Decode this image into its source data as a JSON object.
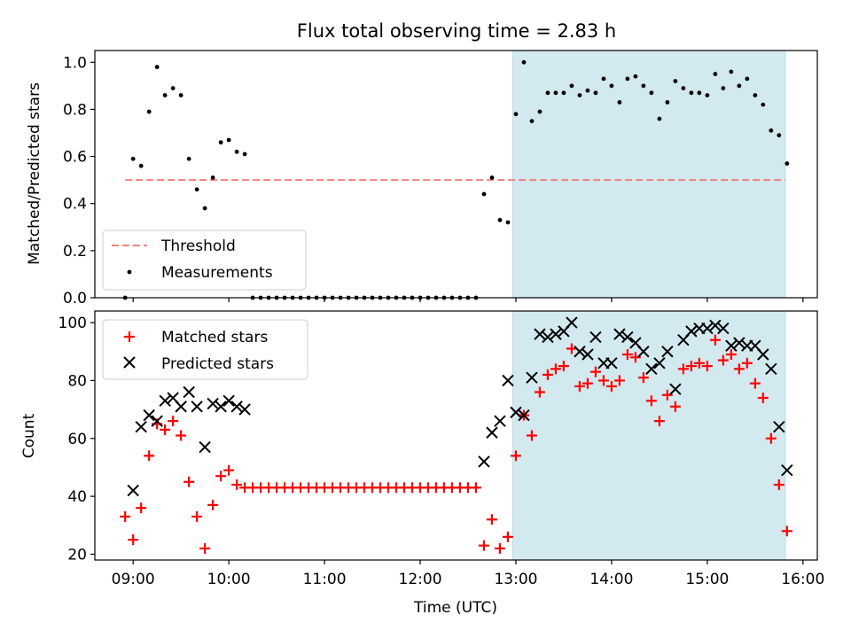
{
  "chart_data": [
    {
      "type": "scatter",
      "title": "Flux total observing time = 2.83 h",
      "ylabel": "Matched/Predicted stars",
      "xlim": [
        "08:36",
        "16:09"
      ],
      "ylim": [
        0,
        1.05
      ],
      "y_ticks": [
        "0.0",
        "0.2",
        "0.4",
        "0.6",
        "0.8",
        "1.0"
      ],
      "grid": false,
      "legend_position": "lower-left",
      "shaded_interval": {
        "start": "12:58",
        "end": "15:49",
        "color": "#d3e9f0"
      },
      "threshold": {
        "name": "Threshold",
        "value": 0.5,
        "x_start": "08:55",
        "x_end": "15:49",
        "color": "#f08080",
        "style": "dashed"
      },
      "measurements": {
        "name": "Measurements",
        "color": "#000000",
        "points": [
          [
            "08:55",
            0.0
          ],
          [
            "09:00",
            0.59
          ],
          [
            "09:05",
            0.56
          ],
          [
            "09:10",
            0.79
          ],
          [
            "09:15",
            0.98
          ],
          [
            "09:20",
            0.86
          ],
          [
            "09:25",
            0.89
          ],
          [
            "09:30",
            0.86
          ],
          [
            "09:35",
            0.59
          ],
          [
            "09:40",
            0.46
          ],
          [
            "09:45",
            0.38
          ],
          [
            "09:50",
            0.51
          ],
          [
            "09:55",
            0.66
          ],
          [
            "10:00",
            0.67
          ],
          [
            "10:05",
            0.62
          ],
          [
            "10:10",
            0.61
          ],
          [
            "10:15",
            0.0
          ],
          [
            "10:20",
            0.0
          ],
          [
            "10:25",
            0.0
          ],
          [
            "10:30",
            0.0
          ],
          [
            "10:35",
            0.0
          ],
          [
            "10:40",
            0.0
          ],
          [
            "10:45",
            0.0
          ],
          [
            "10:50",
            0.0
          ],
          [
            "10:55",
            0.0
          ],
          [
            "11:00",
            0.0
          ],
          [
            "11:05",
            0.0
          ],
          [
            "11:10",
            0.0
          ],
          [
            "11:15",
            0.0
          ],
          [
            "11:20",
            0.0
          ],
          [
            "11:25",
            0.0
          ],
          [
            "11:30",
            0.0
          ],
          [
            "11:35",
            0.0
          ],
          [
            "11:40",
            0.0
          ],
          [
            "11:45",
            0.0
          ],
          [
            "11:50",
            0.0
          ],
          [
            "11:55",
            0.0
          ],
          [
            "12:00",
            0.0
          ],
          [
            "12:05",
            0.0
          ],
          [
            "12:10",
            0.0
          ],
          [
            "12:15",
            0.0
          ],
          [
            "12:20",
            0.0
          ],
          [
            "12:25",
            0.0
          ],
          [
            "12:30",
            0.0
          ],
          [
            "12:35",
            0.0
          ],
          [
            "12:40",
            0.44
          ],
          [
            "12:45",
            0.51
          ],
          [
            "12:50",
            0.33
          ],
          [
            "12:55",
            0.32
          ],
          [
            "13:00",
            0.78
          ],
          [
            "13:05",
            1.0
          ],
          [
            "13:10",
            0.75
          ],
          [
            "13:15",
            0.79
          ],
          [
            "13:20",
            0.87
          ],
          [
            "13:25",
            0.87
          ],
          [
            "13:30",
            0.87
          ],
          [
            "13:35",
            0.9
          ],
          [
            "13:40",
            0.86
          ],
          [
            "13:45",
            0.88
          ],
          [
            "13:50",
            0.87
          ],
          [
            "13:55",
            0.93
          ],
          [
            "14:00",
            0.9
          ],
          [
            "14:05",
            0.83
          ],
          [
            "14:10",
            0.93
          ],
          [
            "14:15",
            0.94
          ],
          [
            "14:20",
            0.9
          ],
          [
            "14:25",
            0.87
          ],
          [
            "14:30",
            0.76
          ],
          [
            "14:35",
            0.83
          ],
          [
            "14:40",
            0.92
          ],
          [
            "14:45",
            0.89
          ],
          [
            "14:50",
            0.87
          ],
          [
            "14:55",
            0.87
          ],
          [
            "15:00",
            0.86
          ],
          [
            "15:05",
            0.95
          ],
          [
            "15:10",
            0.89
          ],
          [
            "15:15",
            0.96
          ],
          [
            "15:20",
            0.9
          ],
          [
            "15:25",
            0.93
          ],
          [
            "15:30",
            0.86
          ],
          [
            "15:35",
            0.82
          ],
          [
            "15:40",
            0.71
          ],
          [
            "15:45",
            0.69
          ],
          [
            "15:50",
            0.57
          ]
        ]
      }
    },
    {
      "type": "scatter",
      "xlabel": "Time (UTC)",
      "ylabel": "Count",
      "xlim": [
        "08:36",
        "16:09"
      ],
      "ylim": [
        18,
        104
      ],
      "x_ticks": [
        "09:00",
        "10:00",
        "11:00",
        "12:00",
        "13:00",
        "14:00",
        "15:00",
        "16:00"
      ],
      "y_ticks": [
        "20",
        "40",
        "60",
        "80",
        "100"
      ],
      "grid": false,
      "legend_position": "upper-left",
      "shaded_interval": {
        "start": "12:58",
        "end": "15:49",
        "color": "#d3e9f0"
      },
      "series": [
        {
          "name": "Matched stars",
          "marker": "+",
          "color": "#ff0000",
          "points": [
            [
              "08:55",
              33
            ],
            [
              "09:00",
              25
            ],
            [
              "09:05",
              36
            ],
            [
              "09:10",
              54
            ],
            [
              "09:15",
              65
            ],
            [
              "09:20",
              63
            ],
            [
              "09:25",
              66
            ],
            [
              "09:30",
              61
            ],
            [
              "09:35",
              45
            ],
            [
              "09:40",
              33
            ],
            [
              "09:45",
              22
            ],
            [
              "09:50",
              37
            ],
            [
              "09:55",
              47
            ],
            [
              "10:00",
              49
            ],
            [
              "10:05",
              44
            ],
            [
              "10:10",
              43
            ],
            [
              "10:15",
              43
            ],
            [
              "10:20",
              43
            ],
            [
              "10:25",
              43
            ],
            [
              "10:30",
              43
            ],
            [
              "10:35",
              43
            ],
            [
              "10:40",
              43
            ],
            [
              "10:45",
              43
            ],
            [
              "10:50",
              43
            ],
            [
              "10:55",
              43
            ],
            [
              "11:00",
              43
            ],
            [
              "11:05",
              43
            ],
            [
              "11:10",
              43
            ],
            [
              "11:15",
              43
            ],
            [
              "11:20",
              43
            ],
            [
              "11:25",
              43
            ],
            [
              "11:30",
              43
            ],
            [
              "11:35",
              43
            ],
            [
              "11:40",
              43
            ],
            [
              "11:45",
              43
            ],
            [
              "11:50",
              43
            ],
            [
              "11:55",
              43
            ],
            [
              "12:00",
              43
            ],
            [
              "12:05",
              43
            ],
            [
              "12:10",
              43
            ],
            [
              "12:15",
              43
            ],
            [
              "12:20",
              43
            ],
            [
              "12:25",
              43
            ],
            [
              "12:30",
              43
            ],
            [
              "12:35",
              43
            ],
            [
              "12:40",
              23
            ],
            [
              "12:45",
              32
            ],
            [
              "12:50",
              22
            ],
            [
              "12:55",
              26
            ],
            [
              "13:00",
              54
            ],
            [
              "13:05",
              68
            ],
            [
              "13:10",
              61
            ],
            [
              "13:15",
              76
            ],
            [
              "13:20",
              82
            ],
            [
              "13:25",
              84
            ],
            [
              "13:30",
              85
            ],
            [
              "13:35",
              91
            ],
            [
              "13:40",
              78
            ],
            [
              "13:45",
              79
            ],
            [
              "13:50",
              83
            ],
            [
              "13:55",
              80
            ],
            [
              "14:00",
              78
            ],
            [
              "14:05",
              80
            ],
            [
              "14:10",
              89
            ],
            [
              "14:15",
              88
            ],
            [
              "14:20",
              81
            ],
            [
              "14:25",
              73
            ],
            [
              "14:30",
              66
            ],
            [
              "14:35",
              75
            ],
            [
              "14:40",
              71
            ],
            [
              "14:45",
              84
            ],
            [
              "14:50",
              85
            ],
            [
              "14:55",
              86
            ],
            [
              "15:00",
              85
            ],
            [
              "15:05",
              94
            ],
            [
              "15:10",
              87
            ],
            [
              "15:15",
              89
            ],
            [
              "15:20",
              84
            ],
            [
              "15:25",
              86
            ],
            [
              "15:30",
              79
            ],
            [
              "15:35",
              74
            ],
            [
              "15:40",
              60
            ],
            [
              "15:45",
              44
            ],
            [
              "15:50",
              28
            ]
          ]
        },
        {
          "name": "Predicted stars",
          "marker": "x",
          "color": "#000000",
          "points": [
            [
              "09:00",
              42
            ],
            [
              "09:05",
              64
            ],
            [
              "09:10",
              68
            ],
            [
              "09:15",
              66
            ],
            [
              "09:20",
              73
            ],
            [
              "09:25",
              74
            ],
            [
              "09:30",
              71
            ],
            [
              "09:35",
              76
            ],
            [
              "09:40",
              71
            ],
            [
              "09:45",
              57
            ],
            [
              "09:50",
              72
            ],
            [
              "09:55",
              71
            ],
            [
              "10:00",
              73
            ],
            [
              "10:05",
              71
            ],
            [
              "10:10",
              70
            ],
            [
              "12:40",
              52
            ],
            [
              "12:45",
              62
            ],
            [
              "12:50",
              66
            ],
            [
              "12:55",
              80
            ],
            [
              "13:00",
              69
            ],
            [
              "13:05",
              68
            ],
            [
              "13:10",
              81
            ],
            [
              "13:15",
              96
            ],
            [
              "13:20",
              95
            ],
            [
              "13:25",
              96
            ],
            [
              "13:30",
              97
            ],
            [
              "13:35",
              100
            ],
            [
              "13:40",
              90
            ],
            [
              "13:45",
              89
            ],
            [
              "13:50",
              95
            ],
            [
              "13:55",
              86
            ],
            [
              "14:00",
              86
            ],
            [
              "14:05",
              96
            ],
            [
              "14:10",
              95
            ],
            [
              "14:15",
              93
            ],
            [
              "14:20",
              90
            ],
            [
              "14:25",
              84
            ],
            [
              "14:30",
              86
            ],
            [
              "14:35",
              90
            ],
            [
              "14:40",
              77
            ],
            [
              "14:45",
              94
            ],
            [
              "14:50",
              97
            ],
            [
              "14:55",
              98
            ],
            [
              "15:00",
              98
            ],
            [
              "15:05",
              99
            ],
            [
              "15:10",
              98
            ],
            [
              "15:15",
              92
            ],
            [
              "15:20",
              93
            ],
            [
              "15:25",
              92
            ],
            [
              "15:30",
              92
            ],
            [
              "15:35",
              89
            ],
            [
              "15:40",
              84
            ],
            [
              "15:45",
              64
            ],
            [
              "15:50",
              49
            ]
          ]
        }
      ]
    }
  ]
}
